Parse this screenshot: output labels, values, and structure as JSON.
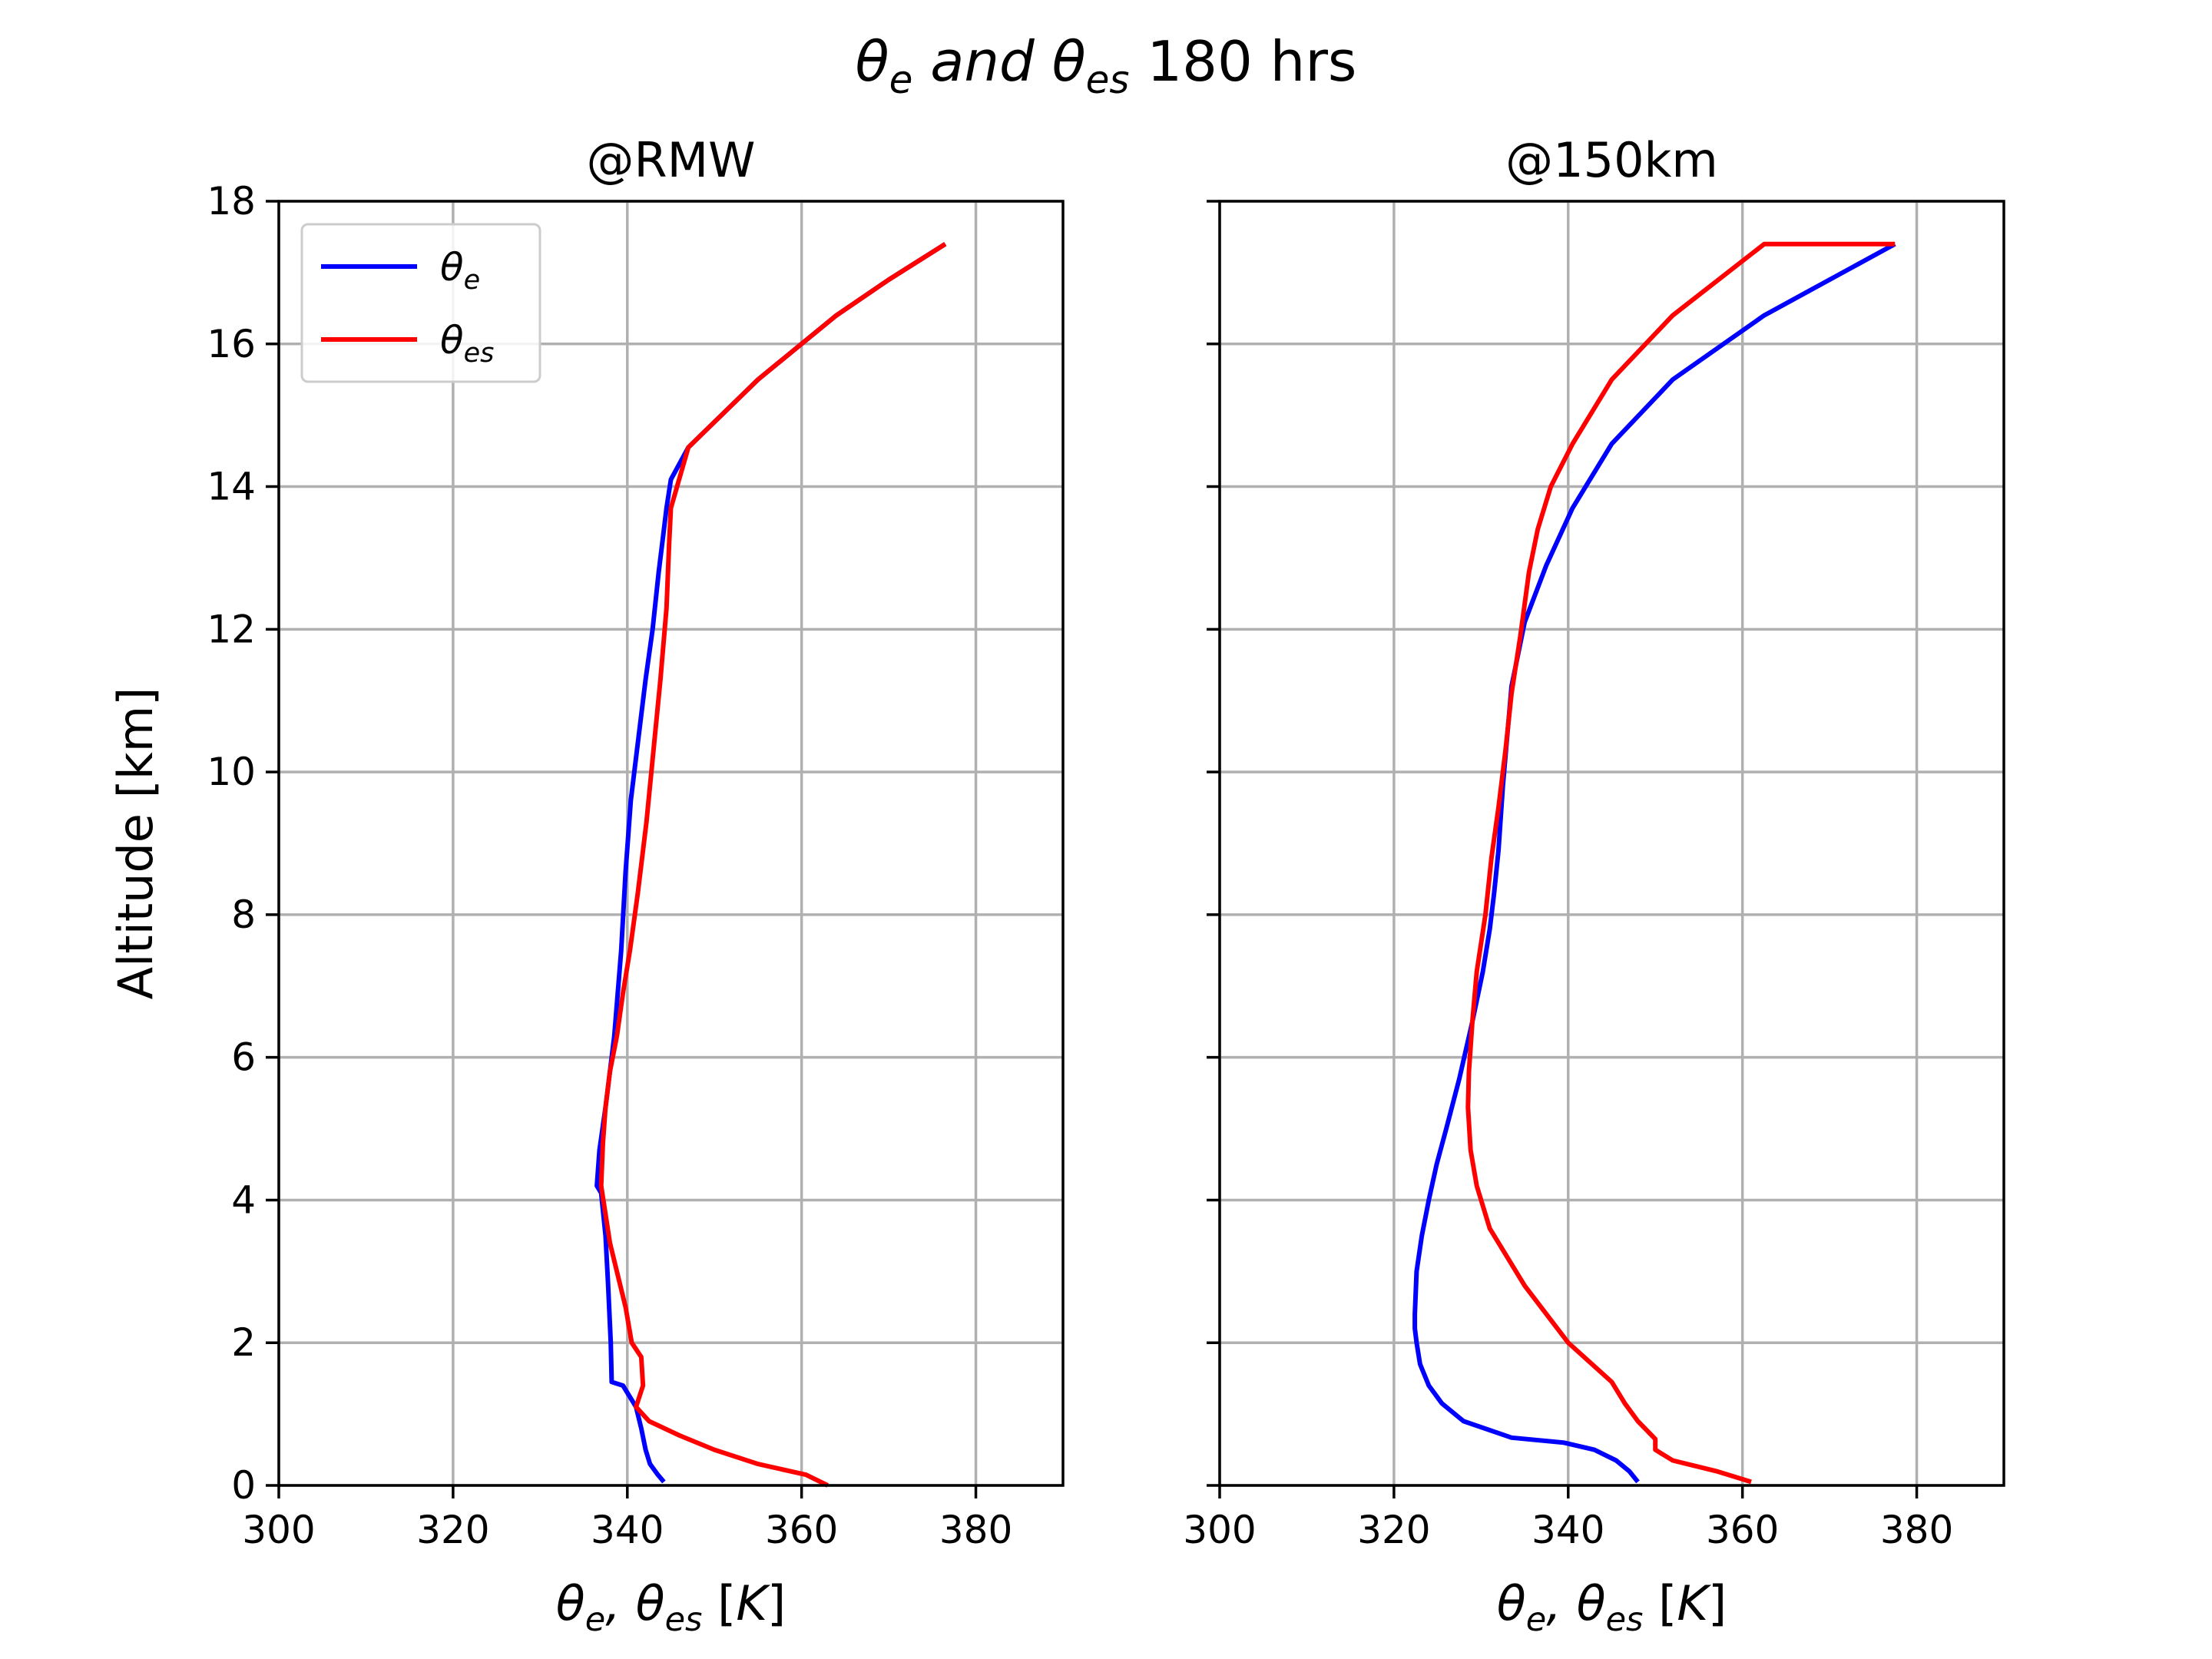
{
  "figure": {
    "title_parts": [
      {
        "text": "θ",
        "italic": true
      },
      {
        "text": "e",
        "italic": true,
        "sub": true
      },
      {
        "text": " and ",
        "italic": true
      },
      {
        "text": "θ",
        "italic": true
      },
      {
        "text": "es",
        "italic": true,
        "sub": true
      },
      {
        "text": " 180 hrs",
        "italic": false
      }
    ]
  },
  "chart_data": [
    {
      "type": "line",
      "title": "@RMW",
      "ylabel": "Altitude [km]",
      "xlabel_parts": [
        {
          "text": "θ",
          "italic": true
        },
        {
          "text": "e",
          "italic": true,
          "sub": true
        },
        {
          "text": ", ",
          "italic": true
        },
        {
          "text": "θ",
          "italic": true
        },
        {
          "text": "es",
          "italic": true,
          "sub": true
        },
        {
          "text": " [",
          "italic": false
        },
        {
          "text": "K",
          "italic": true
        },
        {
          "text": "]",
          "italic": false
        }
      ],
      "xlim": [
        300,
        390
      ],
      "ylim": [
        0,
        18
      ],
      "xticks": [
        300,
        320,
        340,
        360,
        380
      ],
      "yticks": [
        0,
        2,
        4,
        6,
        8,
        10,
        12,
        14,
        16,
        18
      ],
      "show_ytick_labels": true,
      "grid": true,
      "legend": {
        "placement": "upper-left",
        "entries": [
          {
            "symbol": "θ",
            "sub": "e",
            "color": "#0000ff"
          },
          {
            "symbol": "θ",
            "sub": "es",
            "color": "#ff0000"
          }
        ]
      },
      "series": [
        {
          "label": "theta_e",
          "color": "#0000ff",
          "x": [
            344.2,
            343.5,
            342.6,
            342.1,
            341.6,
            341.0,
            339.5,
            338.2,
            338.1,
            337.8,
            337.5,
            337.0,
            336.5,
            336.8,
            337.5,
            338.5,
            339.3,
            339.8,
            340.4,
            341.3,
            342.1,
            342.9,
            343.6,
            344.1,
            344.5,
            345.0,
            347.0,
            355.0,
            364.0,
            370.0,
            376.5
          ],
          "y": [
            0.05,
            0.15,
            0.3,
            0.5,
            0.8,
            1.1,
            1.4,
            1.45,
            2.0,
            2.8,
            3.5,
            4.1,
            4.2,
            4.7,
            5.3,
            6.3,
            7.5,
            8.6,
            9.6,
            10.5,
            11.3,
            12.0,
            12.8,
            13.3,
            13.7,
            14.1,
            14.55,
            15.5,
            16.4,
            16.9,
            17.4
          ]
        },
        {
          "label": "theta_es",
          "color": "#ff0000",
          "x": [
            363.0,
            360.5,
            355.0,
            350.0,
            346.0,
            342.5,
            341.0,
            341.8,
            341.6,
            340.5,
            339.8,
            339.0,
            338.0,
            337.5,
            337.0,
            337.2,
            337.5,
            338.0,
            338.8,
            339.5,
            340.3,
            341.2,
            342.2,
            343.0,
            343.8,
            344.5,
            344.8,
            345.0,
            347.0,
            355.0,
            364.0,
            370.0,
            376.5
          ],
          "y": [
            0.0,
            0.15,
            0.3,
            0.5,
            0.7,
            0.9,
            1.1,
            1.4,
            1.8,
            2.0,
            2.5,
            2.9,
            3.4,
            3.8,
            4.2,
            4.8,
            5.3,
            5.8,
            6.3,
            6.9,
            7.5,
            8.3,
            9.3,
            10.3,
            11.3,
            12.3,
            13.2,
            13.7,
            14.55,
            15.5,
            16.4,
            16.9,
            17.4
          ]
        }
      ]
    },
    {
      "type": "line",
      "title": "@150km",
      "ylabel": "",
      "xlabel_parts": [
        {
          "text": "θ",
          "italic": true
        },
        {
          "text": "e",
          "italic": true,
          "sub": true
        },
        {
          "text": ", ",
          "italic": true
        },
        {
          "text": "θ",
          "italic": true
        },
        {
          "text": "es",
          "italic": true,
          "sub": true
        },
        {
          "text": " [",
          "italic": false
        },
        {
          "text": "K",
          "italic": true
        },
        {
          "text": "]",
          "italic": false
        }
      ],
      "xlim": [
        300,
        390
      ],
      "ylim": [
        0,
        18
      ],
      "xticks": [
        300,
        320,
        340,
        360,
        380
      ],
      "yticks": [
        0,
        2,
        4,
        6,
        8,
        10,
        12,
        14,
        16,
        18
      ],
      "show_ytick_labels": false,
      "grid": true,
      "legend": null,
      "series": [
        {
          "label": "theta_e",
          "color": "#0000ff",
          "x": [
            348.0,
            347.0,
            345.5,
            343.0,
            339.5,
            333.5,
            328.0,
            325.5,
            324.0,
            323.0,
            322.6,
            322.4,
            322.4,
            322.6,
            323.2,
            324.0,
            324.9,
            326.0,
            327.5,
            329.0,
            330.2,
            331.0,
            331.5,
            332.0,
            332.5,
            333.5,
            335.0,
            337.5,
            340.5,
            345.0,
            352.0,
            362.5,
            377.5
          ],
          "y": [
            0.05,
            0.2,
            0.35,
            0.5,
            0.6,
            0.67,
            0.9,
            1.15,
            1.4,
            1.7,
            2.0,
            2.2,
            2.4,
            3.0,
            3.5,
            4.0,
            4.5,
            5.0,
            5.7,
            6.5,
            7.2,
            7.8,
            8.3,
            8.9,
            9.8,
            11.2,
            12.1,
            12.9,
            13.7,
            14.6,
            15.5,
            16.4,
            17.4
          ]
        },
        {
          "label": "theta_es",
          "color": "#ff0000",
          "x": [
            361.0,
            357.0,
            352.0,
            350.0,
            350.0,
            348.0,
            346.5,
            345.0,
            340.0,
            335.0,
            331.0,
            329.5,
            328.8,
            328.5,
            328.6,
            329.0,
            329.5,
            330.5,
            331.2,
            332.0,
            332.8,
            333.5,
            334.5,
            335.5,
            336.5,
            338.0,
            340.5,
            345.0,
            352.0,
            362.5,
            377.5
          ],
          "y": [
            0.05,
            0.2,
            0.35,
            0.5,
            0.65,
            0.9,
            1.15,
            1.45,
            2.0,
            2.8,
            3.6,
            4.2,
            4.7,
            5.3,
            5.8,
            6.5,
            7.2,
            8.0,
            8.8,
            9.5,
            10.3,
            11.1,
            11.9,
            12.8,
            13.4,
            14.0,
            14.6,
            15.5,
            16.4,
            17.4,
            17.4
          ]
        }
      ]
    }
  ]
}
